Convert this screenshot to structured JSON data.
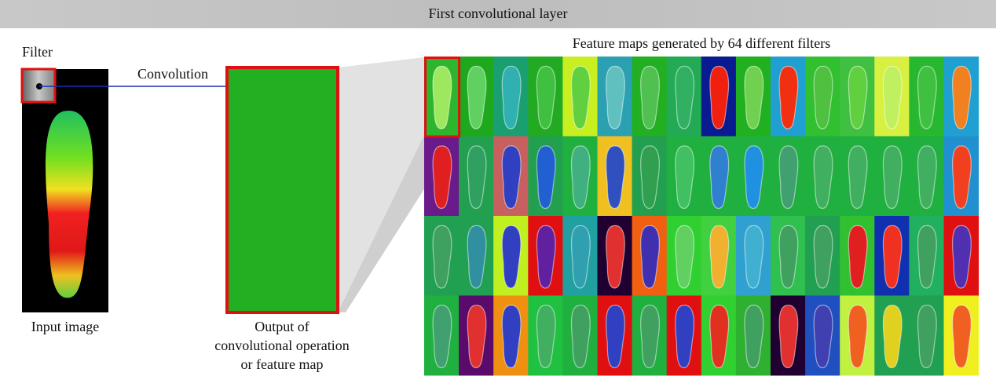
{
  "banner": {
    "title": "First convolutional layer"
  },
  "filter": {
    "label": "Filter"
  },
  "arrow": {
    "label": "Convolution"
  },
  "input": {
    "caption": "Input image"
  },
  "feature_map": {
    "caption": [
      "Output of",
      "convolutional operation",
      "or feature map"
    ]
  },
  "grid": {
    "title": "Feature maps generated by 64 different filters"
  }
}
